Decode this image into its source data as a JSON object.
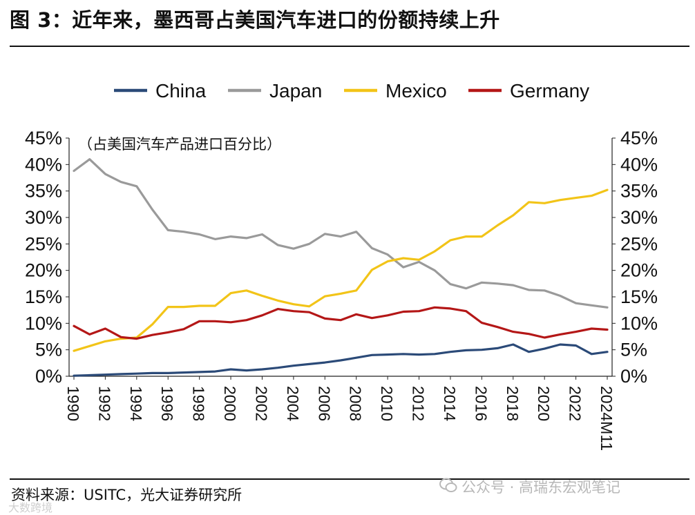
{
  "header": {
    "title": "图 3：近年来，墨西哥占美国汽车进口的份额持续上升"
  },
  "footer": {
    "source": "资料来源：USITC，光大证券研究所",
    "watermark": "公众号 · 高瑞东宏观笔记",
    "watermark_brand": "大数跨境"
  },
  "colors": {
    "China": "#2b4a78",
    "Japan": "#9a9a9a",
    "Mexico": "#f2c418",
    "Germany": "#b41717"
  },
  "chart_data": {
    "type": "line",
    "title": "",
    "unit_label": "（占美国汽车产品进口百分比）",
    "xlabel": "",
    "ylabel": "",
    "ylim": [
      0,
      45
    ],
    "yticks": [
      "0%",
      "5%",
      "10%",
      "15%",
      "20%",
      "25%",
      "30%",
      "35%",
      "40%",
      "45%"
    ],
    "yticks_right": [
      "0%",
      "5%",
      "10%",
      "15%",
      "20%",
      "25%",
      "30%",
      "35%",
      "40%",
      "45%"
    ],
    "xticks": [
      "1990",
      "1992",
      "1994",
      "1996",
      "1998",
      "2000",
      "2002",
      "2004",
      "2006",
      "2008",
      "2010",
      "2012",
      "2014",
      "2016",
      "2018",
      "2020",
      "2022",
      "2024M11"
    ],
    "legend": [
      "China",
      "Japan",
      "Mexico",
      "Germany"
    ],
    "legend_position": "top-center",
    "x": [
      1990,
      1991,
      1992,
      1993,
      1994,
      1995,
      1996,
      1997,
      1998,
      1999,
      2000,
      2001,
      2002,
      2003,
      2004,
      2005,
      2006,
      2007,
      2008,
      2009,
      2010,
      2011,
      2012,
      2013,
      2014,
      2015,
      2016,
      2017,
      2018,
      2019,
      2020,
      2021,
      2022,
      2023,
      2024
    ],
    "series": [
      {
        "name": "China",
        "values": [
          0.1,
          0.2,
          0.3,
          0.4,
          0.5,
          0.6,
          0.6,
          0.7,
          0.8,
          0.9,
          1.3,
          1.1,
          1.3,
          1.6,
          2.0,
          2.3,
          2.6,
          3.0,
          3.5,
          4.0,
          4.1,
          4.2,
          4.1,
          4.2,
          4.6,
          4.9,
          5.0,
          5.3,
          6.0,
          4.6,
          5.2,
          6.0,
          5.8,
          4.2,
          4.6
        ]
      },
      {
        "name": "Japan",
        "values": [
          38.8,
          41.0,
          38.2,
          36.7,
          35.9,
          31.5,
          27.6,
          27.3,
          26.8,
          25.9,
          26.4,
          26.1,
          26.8,
          24.8,
          24.1,
          25.0,
          26.9,
          26.4,
          27.3,
          24.2,
          23.0,
          20.6,
          21.6,
          20.0,
          17.4,
          16.6,
          17.7,
          17.5,
          17.2,
          16.3,
          16.2,
          15.2,
          13.8,
          13.4,
          13.0
        ]
      },
      {
        "name": "Mexico",
        "values": [
          4.8,
          5.7,
          6.6,
          7.1,
          7.3,
          9.8,
          13.1,
          13.1,
          13.3,
          13.3,
          15.7,
          16.2,
          15.2,
          14.3,
          13.6,
          13.2,
          15.1,
          15.6,
          16.2,
          20.1,
          21.7,
          22.3,
          22.0,
          23.6,
          25.7,
          26.4,
          26.4,
          28.5,
          30.4,
          32.9,
          32.7,
          33.3,
          33.7,
          34.1,
          35.2
        ]
      },
      {
        "name": "Germany",
        "values": [
          9.5,
          7.9,
          9.0,
          7.4,
          7.1,
          7.8,
          8.3,
          8.9,
          10.4,
          10.4,
          10.2,
          10.6,
          11.5,
          12.7,
          12.3,
          12.1,
          10.9,
          10.6,
          11.7,
          11.0,
          11.5,
          12.2,
          12.3,
          13.0,
          12.8,
          12.3,
          10.1,
          9.3,
          8.4,
          8.0,
          7.3,
          7.9,
          8.4,
          9.0,
          8.8
        ]
      }
    ]
  }
}
